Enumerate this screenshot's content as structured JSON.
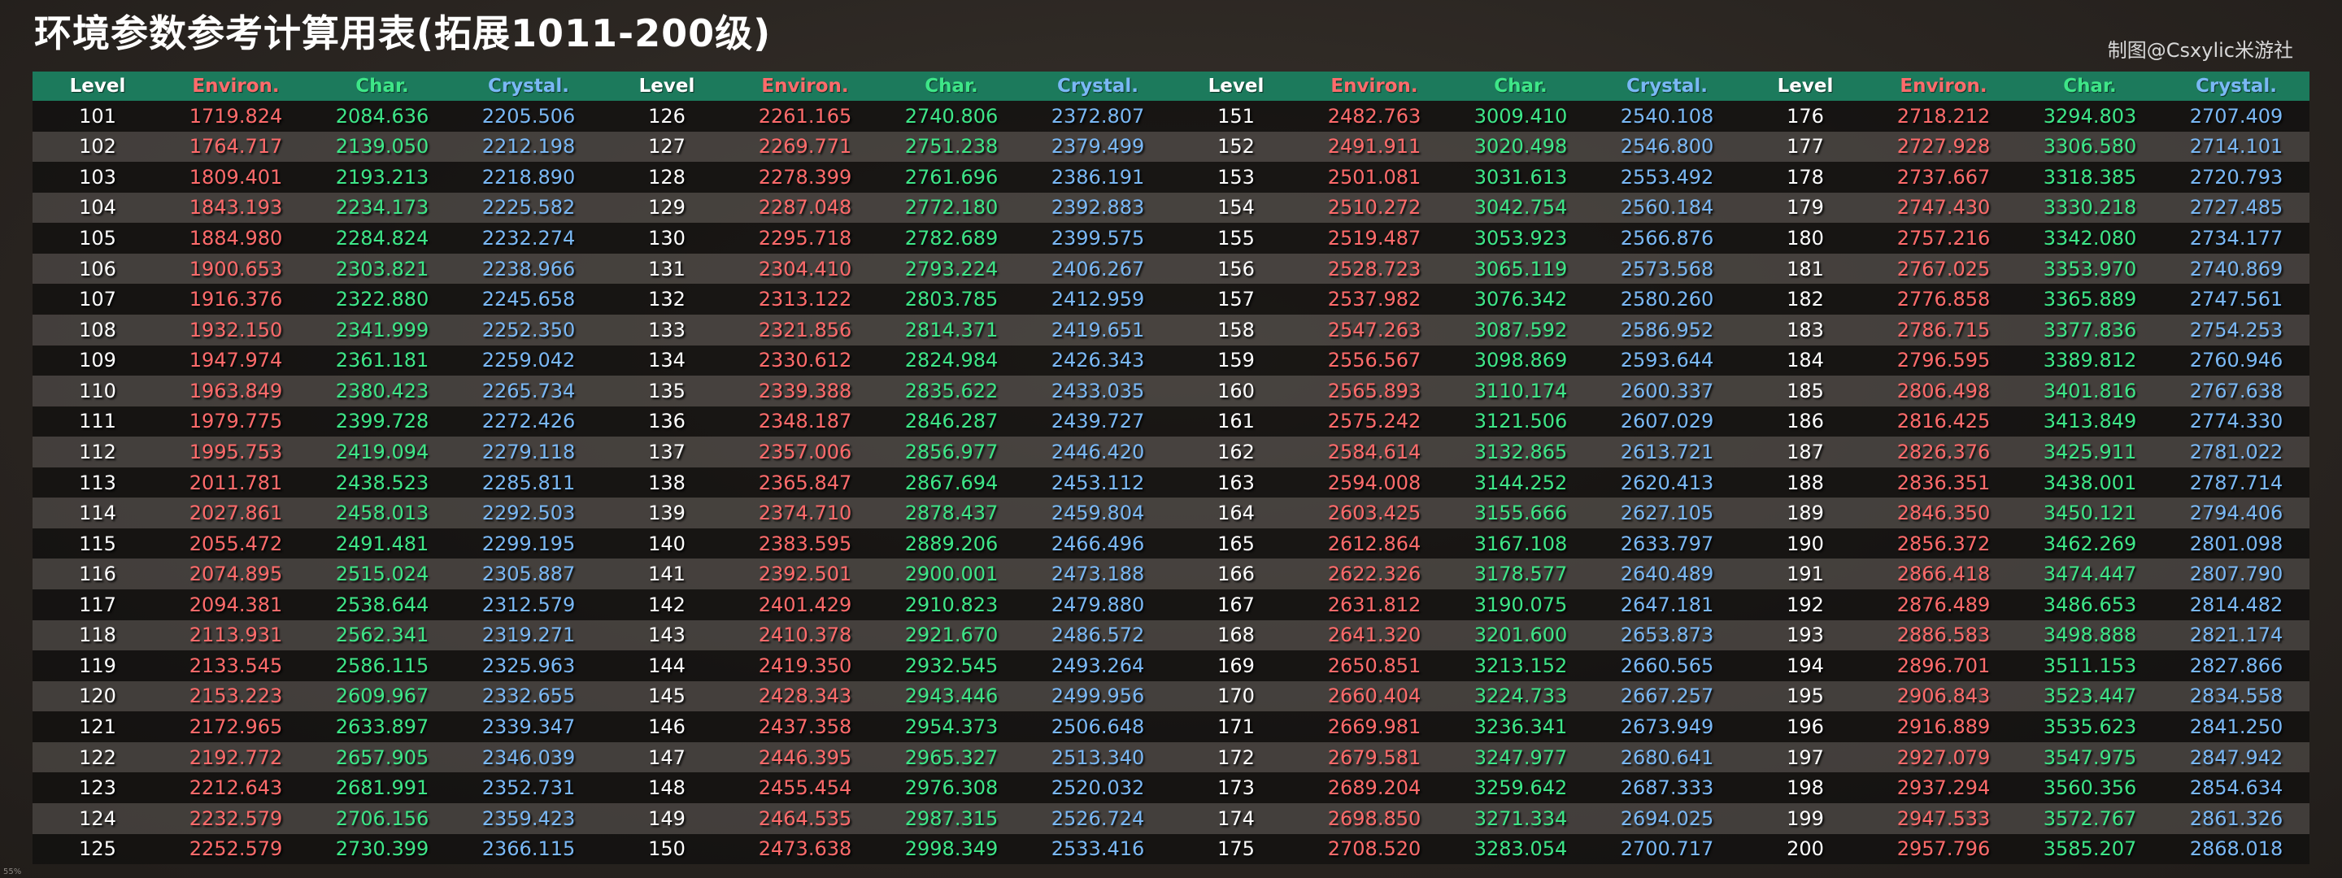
{
  "title": "环境参数参考计算用表(拓展1011-200级)",
  "credit": "制图@Csxylic米游社",
  "corner_mark": "55%",
  "colors": {
    "header_bg": "#1c7a5c",
    "level": "#ffffff",
    "environ": "#ff6b6b",
    "char": "#3ee688",
    "crystal": "#7ab8f5"
  },
  "headers": [
    "Level",
    "Environ.",
    "Char.",
    "Crystal."
  ],
  "rows": [
    [
      [
        "101",
        "1719.824",
        "2084.636",
        "2205.506"
      ],
      [
        "126",
        "2261.165",
        "2740.806",
        "2372.807"
      ],
      [
        "151",
        "2482.763",
        "3009.410",
        "2540.108"
      ],
      [
        "176",
        "2718.212",
        "3294.803",
        "2707.409"
      ]
    ],
    [
      [
        "102",
        "1764.717",
        "2139.050",
        "2212.198"
      ],
      [
        "127",
        "2269.771",
        "2751.238",
        "2379.499"
      ],
      [
        "152",
        "2491.911",
        "3020.498",
        "2546.800"
      ],
      [
        "177",
        "2727.928",
        "3306.580",
        "2714.101"
      ]
    ],
    [
      [
        "103",
        "1809.401",
        "2193.213",
        "2218.890"
      ],
      [
        "128",
        "2278.399",
        "2761.696",
        "2386.191"
      ],
      [
        "153",
        "2501.081",
        "3031.613",
        "2553.492"
      ],
      [
        "178",
        "2737.667",
        "3318.385",
        "2720.793"
      ]
    ],
    [
      [
        "104",
        "1843.193",
        "2234.173",
        "2225.582"
      ],
      [
        "129",
        "2287.048",
        "2772.180",
        "2392.883"
      ],
      [
        "154",
        "2510.272",
        "3042.754",
        "2560.184"
      ],
      [
        "179",
        "2747.430",
        "3330.218",
        "2727.485"
      ]
    ],
    [
      [
        "105",
        "1884.980",
        "2284.824",
        "2232.274"
      ],
      [
        "130",
        "2295.718",
        "2782.689",
        "2399.575"
      ],
      [
        "155",
        "2519.487",
        "3053.923",
        "2566.876"
      ],
      [
        "180",
        "2757.216",
        "3342.080",
        "2734.177"
      ]
    ],
    [
      [
        "106",
        "1900.653",
        "2303.821",
        "2238.966"
      ],
      [
        "131",
        "2304.410",
        "2793.224",
        "2406.267"
      ],
      [
        "156",
        "2528.723",
        "3065.119",
        "2573.568"
      ],
      [
        "181",
        "2767.025",
        "3353.970",
        "2740.869"
      ]
    ],
    [
      [
        "107",
        "1916.376",
        "2322.880",
        "2245.658"
      ],
      [
        "132",
        "2313.122",
        "2803.785",
        "2412.959"
      ],
      [
        "157",
        "2537.982",
        "3076.342",
        "2580.260"
      ],
      [
        "182",
        "2776.858",
        "3365.889",
        "2747.561"
      ]
    ],
    [
      [
        "108",
        "1932.150",
        "2341.999",
        "2252.350"
      ],
      [
        "133",
        "2321.856",
        "2814.371",
        "2419.651"
      ],
      [
        "158",
        "2547.263",
        "3087.592",
        "2586.952"
      ],
      [
        "183",
        "2786.715",
        "3377.836",
        "2754.253"
      ]
    ],
    [
      [
        "109",
        "1947.974",
        "2361.181",
        "2259.042"
      ],
      [
        "134",
        "2330.612",
        "2824.984",
        "2426.343"
      ],
      [
        "159",
        "2556.567",
        "3098.869",
        "2593.644"
      ],
      [
        "184",
        "2796.595",
        "3389.812",
        "2760.946"
      ]
    ],
    [
      [
        "110",
        "1963.849",
        "2380.423",
        "2265.734"
      ],
      [
        "135",
        "2339.388",
        "2835.622",
        "2433.035"
      ],
      [
        "160",
        "2565.893",
        "3110.174",
        "2600.337"
      ],
      [
        "185",
        "2806.498",
        "3401.816",
        "2767.638"
      ]
    ],
    [
      [
        "111",
        "1979.775",
        "2399.728",
        "2272.426"
      ],
      [
        "136",
        "2348.187",
        "2846.287",
        "2439.727"
      ],
      [
        "161",
        "2575.242",
        "3121.506",
        "2607.029"
      ],
      [
        "186",
        "2816.425",
        "3413.849",
        "2774.330"
      ]
    ],
    [
      [
        "112",
        "1995.753",
        "2419.094",
        "2279.118"
      ],
      [
        "137",
        "2357.006",
        "2856.977",
        "2446.420"
      ],
      [
        "162",
        "2584.614",
        "3132.865",
        "2613.721"
      ],
      [
        "187",
        "2826.376",
        "3425.911",
        "2781.022"
      ]
    ],
    [
      [
        "113",
        "2011.781",
        "2438.523",
        "2285.811"
      ],
      [
        "138",
        "2365.847",
        "2867.694",
        "2453.112"
      ],
      [
        "163",
        "2594.008",
        "3144.252",
        "2620.413"
      ],
      [
        "188",
        "2836.351",
        "3438.001",
        "2787.714"
      ]
    ],
    [
      [
        "114",
        "2027.861",
        "2458.013",
        "2292.503"
      ],
      [
        "139",
        "2374.710",
        "2878.437",
        "2459.804"
      ],
      [
        "164",
        "2603.425",
        "3155.666",
        "2627.105"
      ],
      [
        "189",
        "2846.350",
        "3450.121",
        "2794.406"
      ]
    ],
    [
      [
        "115",
        "2055.472",
        "2491.481",
        "2299.195"
      ],
      [
        "140",
        "2383.595",
        "2889.206",
        "2466.496"
      ],
      [
        "165",
        "2612.864",
        "3167.108",
        "2633.797"
      ],
      [
        "190",
        "2856.372",
        "3462.269",
        "2801.098"
      ]
    ],
    [
      [
        "116",
        "2074.895",
        "2515.024",
        "2305.887"
      ],
      [
        "141",
        "2392.501",
        "2900.001",
        "2473.188"
      ],
      [
        "166",
        "2622.326",
        "3178.577",
        "2640.489"
      ],
      [
        "191",
        "2866.418",
        "3474.447",
        "2807.790"
      ]
    ],
    [
      [
        "117",
        "2094.381",
        "2538.644",
        "2312.579"
      ],
      [
        "142",
        "2401.429",
        "2910.823",
        "2479.880"
      ],
      [
        "167",
        "2631.812",
        "3190.075",
        "2647.181"
      ],
      [
        "192",
        "2876.489",
        "3486.653",
        "2814.482"
      ]
    ],
    [
      [
        "118",
        "2113.931",
        "2562.341",
        "2319.271"
      ],
      [
        "143",
        "2410.378",
        "2921.670",
        "2486.572"
      ],
      [
        "168",
        "2641.320",
        "3201.600",
        "2653.873"
      ],
      [
        "193",
        "2886.583",
        "3498.888",
        "2821.174"
      ]
    ],
    [
      [
        "119",
        "2133.545",
        "2586.115",
        "2325.963"
      ],
      [
        "144",
        "2419.350",
        "2932.545",
        "2493.264"
      ],
      [
        "169",
        "2650.851",
        "3213.152",
        "2660.565"
      ],
      [
        "194",
        "2896.701",
        "3511.153",
        "2827.866"
      ]
    ],
    [
      [
        "120",
        "2153.223",
        "2609.967",
        "2332.655"
      ],
      [
        "145",
        "2428.343",
        "2943.446",
        "2499.956"
      ],
      [
        "170",
        "2660.404",
        "3224.733",
        "2667.257"
      ],
      [
        "195",
        "2906.843",
        "3523.447",
        "2834.558"
      ]
    ],
    [
      [
        "121",
        "2172.965",
        "2633.897",
        "2339.347"
      ],
      [
        "146",
        "2437.358",
        "2954.373",
        "2506.648"
      ],
      [
        "171",
        "2669.981",
        "3236.341",
        "2673.949"
      ],
      [
        "196",
        "2916.889",
        "3535.623",
        "2841.250"
      ]
    ],
    [
      [
        "122",
        "2192.772",
        "2657.905",
        "2346.039"
      ],
      [
        "147",
        "2446.395",
        "2965.327",
        "2513.340"
      ],
      [
        "172",
        "2679.581",
        "3247.977",
        "2680.641"
      ],
      [
        "197",
        "2927.079",
        "3547.975",
        "2847.942"
      ]
    ],
    [
      [
        "123",
        "2212.643",
        "2681.991",
        "2352.731"
      ],
      [
        "148",
        "2455.454",
        "2976.308",
        "2520.032"
      ],
      [
        "173",
        "2689.204",
        "3259.642",
        "2687.333"
      ],
      [
        "198",
        "2937.294",
        "3560.356",
        "2854.634"
      ]
    ],
    [
      [
        "124",
        "2232.579",
        "2706.156",
        "2359.423"
      ],
      [
        "149",
        "2464.535",
        "2987.315",
        "2526.724"
      ],
      [
        "174",
        "2698.850",
        "3271.334",
        "2694.025"
      ],
      [
        "199",
        "2947.533",
        "3572.767",
        "2861.326"
      ]
    ],
    [
      [
        "125",
        "2252.579",
        "2730.399",
        "2366.115"
      ],
      [
        "150",
        "2473.638",
        "2998.349",
        "2533.416"
      ],
      [
        "175",
        "2708.520",
        "3283.054",
        "2700.717"
      ],
      [
        "200",
        "2957.796",
        "3585.207",
        "2868.018"
      ]
    ]
  ]
}
